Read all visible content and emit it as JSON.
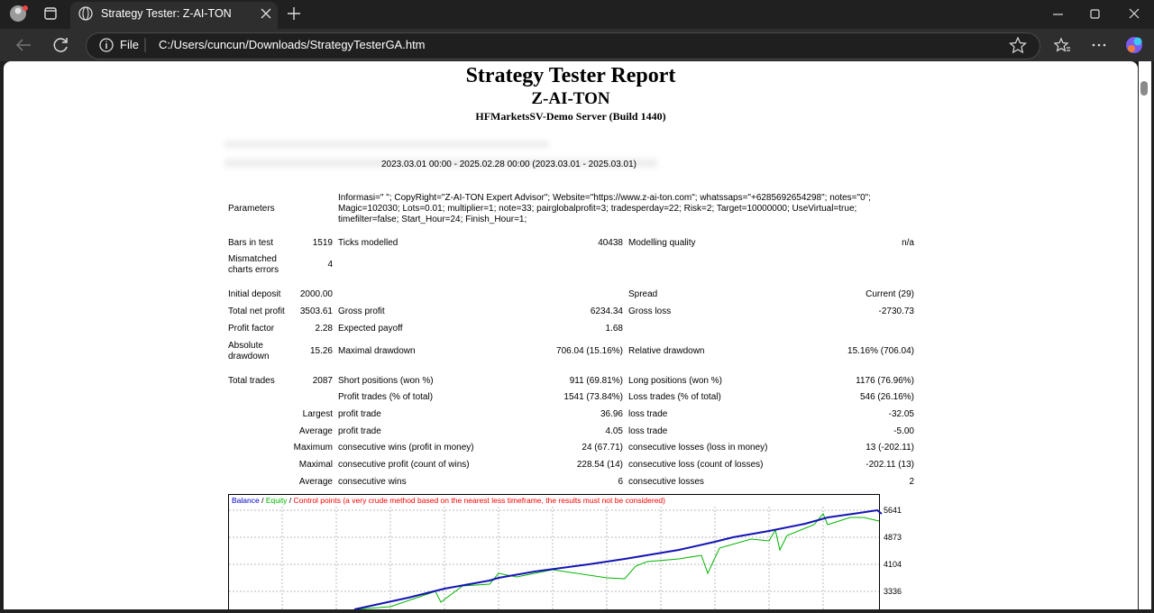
{
  "browser": {
    "tab_title": "Strategy Tester: Z-AI-TON",
    "file_label": "File",
    "url": "C:/Users/cuncun/Downloads/StrategyTesterGA.htm"
  },
  "report": {
    "title": "Strategy Tester Report",
    "expert": "Z-AI-TON",
    "server": "HFMarketsSV-Demo Server (Build 1440)",
    "period": "2023.03.01 00:00 - 2025.02.28 00:00 (2023.03.01 - 2025.03.01)",
    "parameters": {
      "label": "Parameters",
      "lines": [
        "Informasi=\" \"; CopyRight=\"Z-AI-TON Expert Advisor\"; Website=\"https://www.z-ai-ton.com\"; whatssaps=\"+6285692654298\"; notes=\"0\";",
        "Magic=102030; Lots=0.01; multiplier=1; note=33; pairglobalprofit=3; tradesperday=22; Risk=2; Target=10000000; UseVirtual=true;",
        "timefilter=false; Start_Hour=24; Finish_Hour=1;"
      ]
    },
    "rows": [
      [
        "Bars in test",
        "1519",
        "Ticks modelled",
        "40438",
        "Modelling quality",
        "n/a"
      ],
      [
        "Mismatched charts errors",
        "4",
        null,
        null,
        null,
        null
      ],
      [
        "Initial deposit",
        "2000.00",
        null,
        null,
        "Spread",
        "Current (29)"
      ],
      [
        "Total net profit",
        "3503.61",
        "Gross profit",
        "6234.34",
        "Gross loss",
        "-2730.73"
      ],
      [
        "Profit factor",
        "2.28",
        "Expected payoff",
        "1.68",
        null,
        null
      ],
      [
        "Absolute drawdown",
        "15.26",
        "Maximal drawdown",
        "706.04 (15.16%)",
        "Relative drawdown",
        "15.16% (706.04)"
      ],
      [
        "Total trades",
        "2087",
        "Short positions (won %)",
        "911 (69.81%)",
        "Long positions (won %)",
        "1176 (76.96%)"
      ],
      [
        null,
        null,
        "Profit trades (% of total)",
        "1541 (73.84%)",
        "Loss trades (% of total)",
        "546 (26.16%)"
      ],
      [
        null,
        "Largest",
        "profit trade",
        "36.96",
        "loss trade",
        "-32.05"
      ],
      [
        null,
        "Average",
        "profit trade",
        "4.05",
        "loss trade",
        "-5.00"
      ],
      [
        null,
        "Maximum",
        "consecutive wins (profit in money)",
        "24 (67.71)",
        "consecutive losses (loss in money)",
        "13 (-202.11)"
      ],
      [
        null,
        "Maximal",
        "consecutive profit (count of wins)",
        "228.54 (14)",
        "consecutive loss (count of losses)",
        "-202.11 (13)"
      ],
      [
        null,
        "Average",
        "consecutive wins",
        "6",
        "consecutive losses",
        "2"
      ]
    ],
    "chart": {
      "legend": [
        {
          "text": "Balance",
          "color": "#0000c8"
        },
        {
          "text": " / ",
          "color": "#000000"
        },
        {
          "text": "Equity",
          "color": "#00b400"
        },
        {
          "text": " / ",
          "color": "#000000"
        },
        {
          "text": "Control points (a very crude method based on the nearest less timeframe, the results must not be considered)",
          "color": "#ff0000"
        }
      ],
      "yticks": [
        "5641",
        "4873",
        "4104",
        "3336"
      ]
    }
  }
}
